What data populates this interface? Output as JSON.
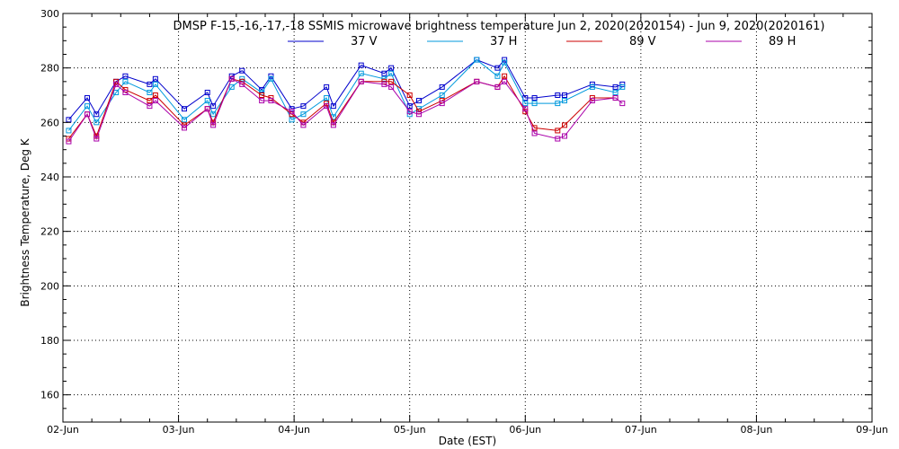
{
  "chart_data": {
    "type": "line",
    "title": "DMSP F-15,-16,-17,-18 SSMIS microwave brightness temperature Jun  2, 2020(2020154) - Jun  9, 2020(2020161)",
    "xlabel": "Date (EST)",
    "ylabel": "Brightness Temperature, Deg K",
    "xlim": [
      0,
      7
    ],
    "ylim": [
      150,
      300
    ],
    "yticks": [
      160,
      180,
      200,
      220,
      240,
      260,
      280,
      300
    ],
    "xtick_values": [
      0,
      1,
      2,
      3,
      4,
      5,
      6,
      7
    ],
    "xtick_labels": [
      "02-Jun",
      "03-Jun",
      "04-Jun",
      "05-Jun",
      "06-Jun",
      "07-Jun",
      "08-Jun",
      "09-Jun"
    ],
    "grid": true,
    "legend_position": "top-center",
    "series": [
      {
        "name": "37 V",
        "color": "#0000cc",
        "points": [
          [
            0.05,
            261
          ],
          [
            0.21,
            269
          ],
          [
            0.29,
            263
          ],
          [
            0.46,
            275
          ],
          [
            0.54,
            277
          ],
          [
            0.75,
            274
          ],
          [
            0.8,
            276
          ],
          [
            1.05,
            265
          ],
          [
            1.25,
            271
          ],
          [
            1.3,
            266
          ],
          [
            1.46,
            277
          ],
          [
            1.55,
            279
          ],
          [
            1.72,
            272
          ],
          [
            1.8,
            277
          ],
          [
            1.98,
            265
          ],
          [
            2.08,
            266
          ],
          [
            2.28,
            273
          ],
          [
            2.34,
            266
          ],
          [
            2.58,
            281
          ],
          [
            2.78,
            278
          ],
          [
            2.84,
            280
          ],
          [
            3.0,
            266
          ],
          [
            3.08,
            268
          ],
          [
            3.28,
            273
          ],
          [
            3.58,
            283
          ],
          [
            3.76,
            280
          ],
          [
            3.82,
            283
          ],
          [
            4.0,
            269
          ],
          [
            4.08,
            269
          ],
          [
            4.28,
            270
          ],
          [
            4.34,
            270
          ],
          [
            4.58,
            274
          ],
          [
            4.78,
            273
          ],
          [
            4.84,
            274
          ]
        ]
      },
      {
        "name": "37 H",
        "color": "#0099dd",
        "points": [
          [
            0.05,
            257
          ],
          [
            0.21,
            266
          ],
          [
            0.29,
            260
          ],
          [
            0.46,
            271
          ],
          [
            0.54,
            275
          ],
          [
            0.75,
            271
          ],
          [
            0.8,
            274
          ],
          [
            1.05,
            261
          ],
          [
            1.25,
            268
          ],
          [
            1.3,
            263
          ],
          [
            1.46,
            273
          ],
          [
            1.55,
            276
          ],
          [
            1.72,
            271
          ],
          [
            1.8,
            276
          ],
          [
            1.98,
            261
          ],
          [
            2.08,
            263
          ],
          [
            2.28,
            269
          ],
          [
            2.34,
            262
          ],
          [
            2.58,
            278
          ],
          [
            2.78,
            276
          ],
          [
            2.84,
            278
          ],
          [
            3.0,
            263
          ],
          [
            3.08,
            265
          ],
          [
            3.28,
            270
          ],
          [
            3.58,
            283
          ],
          [
            3.76,
            277
          ],
          [
            3.82,
            282
          ],
          [
            4.0,
            267
          ],
          [
            4.08,
            267
          ],
          [
            4.28,
            267
          ],
          [
            4.34,
            268
          ],
          [
            4.58,
            273
          ],
          [
            4.78,
            271
          ],
          [
            4.84,
            273
          ]
        ]
      },
      {
        "name": "89 V",
        "color": "#cc0000",
        "points": [
          [
            0.05,
            254
          ],
          [
            0.21,
            263
          ],
          [
            0.29,
            255
          ],
          [
            0.46,
            275
          ],
          [
            0.54,
            272
          ],
          [
            0.75,
            268
          ],
          [
            0.8,
            270
          ],
          [
            1.05,
            259
          ],
          [
            1.25,
            265
          ],
          [
            1.3,
            260
          ],
          [
            1.46,
            276
          ],
          [
            1.55,
            275
          ],
          [
            1.72,
            270
          ],
          [
            1.8,
            269
          ],
          [
            1.98,
            263
          ],
          [
            2.08,
            260
          ],
          [
            2.28,
            267
          ],
          [
            2.34,
            260
          ],
          [
            2.58,
            275
          ],
          [
            2.78,
            275
          ],
          [
            2.84,
            275
          ],
          [
            3.0,
            270
          ],
          [
            3.08,
            264
          ],
          [
            3.28,
            268
          ],
          [
            3.58,
            275
          ],
          [
            3.76,
            273
          ],
          [
            3.82,
            277
          ],
          [
            4.0,
            264
          ],
          [
            4.08,
            258
          ],
          [
            4.28,
            257
          ],
          [
            4.34,
            259
          ],
          [
            4.58,
            269
          ],
          [
            4.78,
            269
          ]
        ]
      },
      {
        "name": "89 H",
        "color": "#aa00aa",
        "points": [
          [
            0.05,
            253
          ],
          [
            0.21,
            263
          ],
          [
            0.29,
            254
          ],
          [
            0.46,
            274
          ],
          [
            0.54,
            271
          ],
          [
            0.75,
            266
          ],
          [
            0.8,
            268
          ],
          [
            1.05,
            258
          ],
          [
            1.25,
            265
          ],
          [
            1.3,
            259
          ],
          [
            1.46,
            276
          ],
          [
            1.55,
            274
          ],
          [
            1.72,
            268
          ],
          [
            1.8,
            268
          ],
          [
            1.98,
            264
          ],
          [
            2.08,
            259
          ],
          [
            2.28,
            266
          ],
          [
            2.34,
            259
          ],
          [
            2.58,
            275
          ],
          [
            2.78,
            274
          ],
          [
            2.84,
            273
          ],
          [
            3.0,
            264
          ],
          [
            3.08,
            263
          ],
          [
            3.28,
            267
          ],
          [
            3.58,
            275
          ],
          [
            3.76,
            273
          ],
          [
            3.82,
            275
          ],
          [
            4.0,
            265
          ],
          [
            4.08,
            256
          ],
          [
            4.28,
            254
          ],
          [
            4.34,
            255
          ],
          [
            4.58,
            268
          ],
          [
            4.78,
            269
          ],
          [
            4.84,
            267
          ]
        ]
      }
    ]
  }
}
